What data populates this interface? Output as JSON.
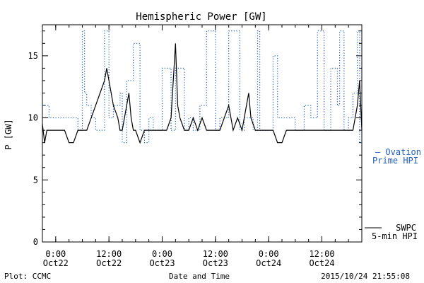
{
  "chart_data": {
    "type": "line",
    "title": "Hemispheric Power [GW]",
    "xlabel": "Date and Time",
    "ylabel": "P [GW]",
    "ylim": [
      0,
      17.5
    ],
    "y_ticks": [
      0,
      5,
      10,
      15
    ],
    "xlim": [
      "2015-10-21 21:00",
      "2015-10-24 21:00"
    ],
    "x_ticks": [
      {
        "time": "2015-10-22 00:00",
        "line1": "0:00",
        "line2": "Oct22"
      },
      {
        "time": "2015-10-22 12:00",
        "line1": "12:00",
        "line2": "Oct22"
      },
      {
        "time": "2015-10-23 00:00",
        "line1": "0:00",
        "line2": "Oct23"
      },
      {
        "time": "2015-10-23 12:00",
        "line1": "12:00",
        "line2": "Oct23"
      },
      {
        "time": "2015-10-24 00:00",
        "line1": "0:00",
        "line2": "Oct24"
      },
      {
        "time": "2015-10-24 12:00",
        "line1": "12:00",
        "line2": "Oct24"
      }
    ],
    "grid": false,
    "legend_position": "right, outside plot",
    "series": [
      {
        "name": "Ovation Prime HPI",
        "label_lines": [
          "— Ovation",
          "Prime HPI"
        ],
        "color": "#1f5fbf",
        "style": "dotted-step",
        "x": [
          "2015-10-21 21:00",
          "2015-10-21 22:30",
          "2015-10-22 01:00",
          "2015-10-22 05:00",
          "2015-10-22 06:00",
          "2015-10-22 06:30",
          "2015-10-22 07:00",
          "2015-10-22 08:00",
          "2015-10-22 09:00",
          "2015-10-22 11:00",
          "2015-10-22 12:00",
          "2015-10-22 13:00",
          "2015-10-22 14:30",
          "2015-10-22 15:00",
          "2015-10-22 16:00",
          "2015-10-22 17:30",
          "2015-10-22 19:00",
          "2015-10-22 20:00",
          "2015-10-22 21:00",
          "2015-10-22 22:00",
          "2015-10-23 00:00",
          "2015-10-23 02:00",
          "2015-10-23 03:00",
          "2015-10-23 05:00",
          "2015-10-23 06:00",
          "2015-10-23 07:00",
          "2015-10-23 08:30",
          "2015-10-23 10:00",
          "2015-10-23 12:00",
          "2015-10-23 13:00",
          "2015-10-23 15:00",
          "2015-10-23 17:30",
          "2015-10-23 18:30",
          "2015-10-23 20:30",
          "2015-10-23 21:30",
          "2015-10-23 22:00",
          "2015-10-24 01:00",
          "2015-10-24 02:00",
          "2015-10-24 03:00",
          "2015-10-24 06:00",
          "2015-10-24 08:00",
          "2015-10-24 09:30",
          "2015-10-24 11:00",
          "2015-10-24 12:30",
          "2015-10-24 14:00",
          "2015-10-24 15:30",
          "2015-10-24 16:00",
          "2015-10-24 17:00",
          "2015-10-24 18:00",
          "2015-10-24 19:00",
          "2015-10-24 20:00",
          "2015-10-24 20:30"
        ],
        "y": [
          11,
          10,
          10,
          9,
          17,
          12,
          11,
          10,
          9,
          17,
          10,
          11,
          12,
          8,
          13,
          16,
          9,
          8,
          10,
          9,
          14,
          9,
          14,
          9,
          10,
          9,
          11,
          17,
          9,
          10,
          17,
          9,
          10,
          9,
          17,
          9,
          15,
          10,
          10,
          9,
          11,
          10,
          17,
          9,
          14,
          11,
          17,
          9,
          10,
          12,
          17,
          8
        ]
      },
      {
        "name": "SWPC 5-min HPI",
        "label_lines": [
          "SWPC",
          "5-min HPI"
        ],
        "color": "#000000",
        "style": "solid",
        "x": [
          "2015-10-21 21:00",
          "2015-10-21 21:30",
          "2015-10-21 22:00",
          "2015-10-21 23:00",
          "2015-10-22 00:00",
          "2015-10-22 01:00",
          "2015-10-22 02:00",
          "2015-10-22 03:00",
          "2015-10-22 04:00",
          "2015-10-22 05:00",
          "2015-10-22 06:00",
          "2015-10-22 07:00",
          "2015-10-22 08:00",
          "2015-10-22 09:00",
          "2015-10-22 10:00",
          "2015-10-22 11:00",
          "2015-10-22 11:30",
          "2015-10-22 12:00",
          "2015-10-22 12:30",
          "2015-10-22 13:00",
          "2015-10-22 14:00",
          "2015-10-22 14:30",
          "2015-10-22 15:00",
          "2015-10-22 16:00",
          "2015-10-22 16:30",
          "2015-10-22 17:00",
          "2015-10-22 17:30",
          "2015-10-22 18:00",
          "2015-10-22 19:00",
          "2015-10-22 20:00",
          "2015-10-22 21:00",
          "2015-10-22 22:00",
          "2015-10-22 23:00",
          "2015-10-23 00:00",
          "2015-10-23 01:00",
          "2015-10-23 02:00",
          "2015-10-23 02:30",
          "2015-10-23 03:00",
          "2015-10-23 03:30",
          "2015-10-23 04:00",
          "2015-10-23 05:00",
          "2015-10-23 06:00",
          "2015-10-23 07:00",
          "2015-10-23 08:00",
          "2015-10-23 09:00",
          "2015-10-23 10:00",
          "2015-10-23 11:00",
          "2015-10-23 12:00",
          "2015-10-23 13:00",
          "2015-10-23 14:00",
          "2015-10-23 15:00",
          "2015-10-23 16:00",
          "2015-10-23 17:00",
          "2015-10-23 18:00",
          "2015-10-23 19:00",
          "2015-10-23 19:30",
          "2015-10-23 20:00",
          "2015-10-23 21:00",
          "2015-10-23 22:00",
          "2015-10-23 23:00",
          "2015-10-24 00:00",
          "2015-10-24 01:00",
          "2015-10-24 02:00",
          "2015-10-24 03:00",
          "2015-10-24 04:00",
          "2015-10-24 05:00",
          "2015-10-24 06:00",
          "2015-10-24 07:00",
          "2015-10-24 08:00",
          "2015-10-24 09:00",
          "2015-10-24 10:00",
          "2015-10-24 11:00",
          "2015-10-24 12:00",
          "2015-10-24 13:00",
          "2015-10-24 14:00",
          "2015-10-24 15:00",
          "2015-10-24 16:00",
          "2015-10-24 17:00",
          "2015-10-24 18:00",
          "2015-10-24 19:00",
          "2015-10-24 20:00",
          "2015-10-24 20:30",
          "2015-10-24 21:00"
        ],
        "y": [
          9.5,
          8,
          9,
          9,
          9,
          9,
          9,
          8,
          8,
          9,
          9,
          9,
          10,
          11,
          12,
          13,
          14,
          13,
          12,
          11,
          10,
          9,
          9,
          11,
          12,
          10,
          9,
          9,
          8,
          9,
          9,
          9,
          9,
          9,
          9,
          10,
          13,
          16,
          11,
          10,
          9,
          9,
          10,
          9,
          10,
          9,
          9,
          9,
          9,
          10,
          11,
          9,
          10,
          9,
          11,
          12,
          10,
          9,
          9,
          9,
          9,
          9,
          8,
          8,
          9,
          9,
          9,
          9,
          9,
          9,
          9,
          9,
          9,
          9,
          9,
          9,
          9,
          9,
          9,
          9,
          11,
          13,
          9
        ]
      }
    ]
  },
  "footer": {
    "left": "Plot: CCMC",
    "center": "Date and Time",
    "right": "2015/10/24 21:55:08"
  }
}
